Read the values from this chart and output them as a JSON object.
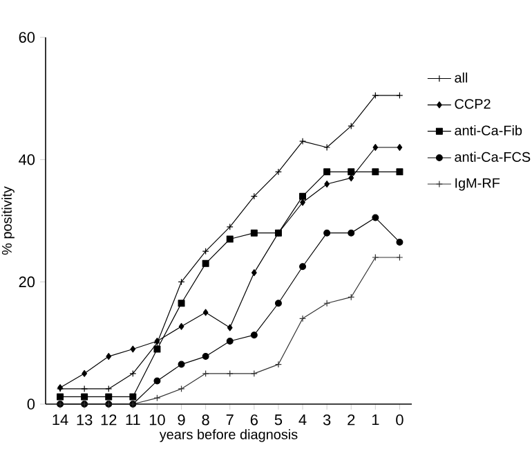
{
  "chart_data": {
    "type": "line",
    "xlabel": "years before diagnosis",
    "ylabel": "% positivity",
    "x": [
      14,
      13,
      12,
      11,
      10,
      9,
      8,
      7,
      6,
      5,
      4,
      3,
      2,
      1,
      0
    ],
    "xlim": [
      14.6,
      -0.5
    ],
    "xticks": [
      14,
      13,
      12,
      11,
      10,
      9,
      8,
      7,
      6,
      5,
      4,
      3,
      2,
      1,
      0
    ],
    "ylim": [
      0,
      60
    ],
    "yticks": [
      0,
      20,
      40,
      60
    ],
    "grid": false,
    "legend": "right",
    "line_style": "solid",
    "series": [
      {
        "name": "all",
        "color": "#000000",
        "marker": "cross",
        "values": [
          2.5,
          2.5,
          2.5,
          5,
          10,
          20,
          25,
          29,
          34,
          38,
          43,
          42,
          45.5,
          50.5,
          50.5
        ]
      },
      {
        "name": "CCP2",
        "color": "#000000",
        "marker": "diamond",
        "values": [
          2.7,
          5,
          7.8,
          9,
          10.3,
          12.7,
          15,
          12.5,
          21.5,
          28,
          33,
          36,
          37,
          42,
          42
        ]
      },
      {
        "name": "anti-Ca-Fib",
        "color": "#000000",
        "marker": "square",
        "values": [
          1.2,
          1.2,
          1.2,
          1.2,
          9,
          16.5,
          23,
          27,
          28,
          28,
          34,
          38,
          38,
          38,
          38
        ]
      },
      {
        "name": "anti-Ca-FCS",
        "color": "#000000",
        "marker": "circle",
        "values": [
          0,
          0,
          0,
          0,
          3.8,
          6.5,
          7.8,
          10.3,
          11.3,
          16.5,
          22.5,
          28,
          28,
          30.5,
          26.5
        ]
      },
      {
        "name": "IgM-RF",
        "color": "#333333",
        "marker": "cross",
        "values": [
          0,
          0,
          0,
          0,
          1,
          2.5,
          5,
          5,
          5,
          6.5,
          14,
          16.5,
          17.5,
          24,
          24
        ]
      }
    ]
  }
}
